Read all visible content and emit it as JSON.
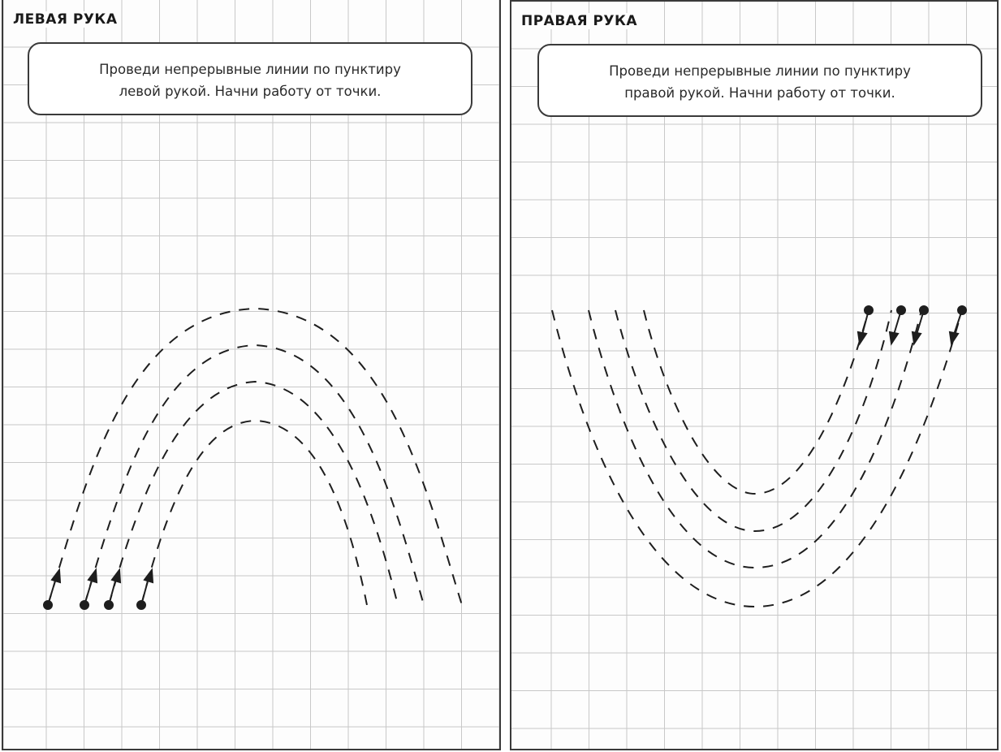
{
  "left_panel": {
    "heading": "ЛЕВАЯ РУКА",
    "instruction": {
      "line1": "Проведи непрерывные линии по пунктиру",
      "line2": "левой рукой. Начни работу от точки."
    }
  },
  "right_panel": {
    "heading": "ПРАВАЯ РУКА",
    "instruction": {
      "line1": "Проведи непрерывные линии по пунктиру",
      "line2": "правой рукой. Начни работу от точки."
    }
  },
  "colors": {
    "ink": "#1e1e1e",
    "grid": "#c8c8c8",
    "border": "#3a3a3a"
  }
}
